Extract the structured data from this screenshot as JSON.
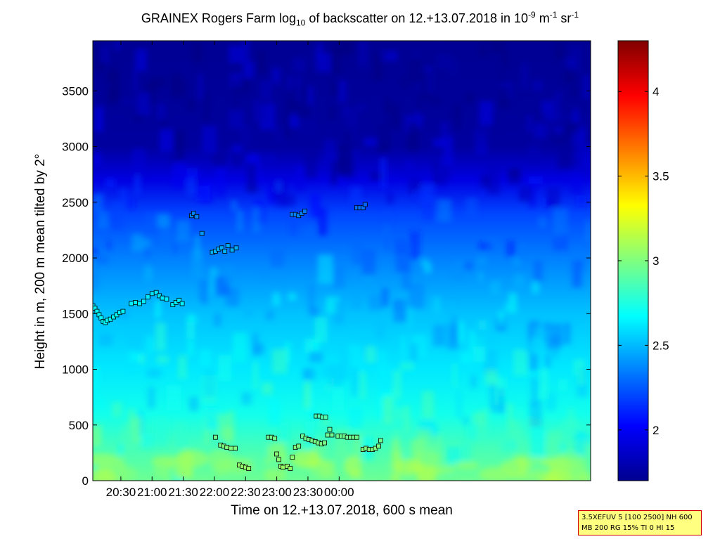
{
  "title": {
    "prefix": "GRAINEX Rogers Farm log",
    "sub": "10",
    "middle": " of backscatter on 12.+13.07.2018 in 10",
    "sup1": "-9",
    "unit1": " m",
    "sup2": "-1",
    "unit2": " sr",
    "sup3": "-1"
  },
  "note": {
    "line1": "3.5XEFUV 5 [100 2500] NH 600",
    "line2": "MB 200 RG 15% TI 0 HI 15"
  },
  "chart_data": {
    "type": "heatmap",
    "xlabel": "Time on 12.+13.07.2018, 600 s mean",
    "ylabel": "Height in m, 200 m mean tilted by 2°",
    "x_unit": "minutes after 20:00 on 12.07.2018",
    "xlim": [
      3,
      482
    ],
    "ylim": [
      0,
      3950
    ],
    "x_ticks": [
      {
        "value": 30,
        "label": "20:30"
      },
      {
        "value": 60,
        "label": "21:00"
      },
      {
        "value": 90,
        "label": "21:30"
      },
      {
        "value": 120,
        "label": "22:00"
      },
      {
        "value": 150,
        "label": "22:30"
      },
      {
        "value": 180,
        "label": "23:00"
      },
      {
        "value": 210,
        "label": "23:30"
      },
      {
        "value": 240,
        "label": "00:00"
      }
    ],
    "y_ticks": [
      0,
      500,
      1000,
      1500,
      2000,
      2500,
      3000,
      3500
    ],
    "colorbar": {
      "range": [
        1.7,
        4.3
      ],
      "ticks": [
        2,
        2.5,
        3,
        3.5,
        4
      ],
      "colormap": "jet"
    },
    "heatmap_profile": [
      {
        "height": 0,
        "value": 2.95
      },
      {
        "height": 300,
        "value": 2.85
      },
      {
        "height": 600,
        "value": 2.72
      },
      {
        "height": 1000,
        "value": 2.62
      },
      {
        "height": 1500,
        "value": 2.52
      },
      {
        "height": 2000,
        "value": 2.35
      },
      {
        "height": 2400,
        "value": 2.2
      },
      {
        "height": 2700,
        "value": 1.95
      },
      {
        "height": 3000,
        "value": 1.78
      },
      {
        "height": 3950,
        "value": 1.75
      }
    ],
    "markers": [
      {
        "time": 3,
        "height": 1570
      },
      {
        "time": 5,
        "height": 1550
      },
      {
        "time": 7,
        "height": 1520
      },
      {
        "time": 9,
        "height": 1490
      },
      {
        "time": 11,
        "height": 1460
      },
      {
        "time": 13,
        "height": 1430
      },
      {
        "time": 15,
        "height": 1420
      },
      {
        "time": 17,
        "height": 1440
      },
      {
        "time": 20,
        "height": 1450
      },
      {
        "time": 23,
        "height": 1470
      },
      {
        "time": 26,
        "height": 1490
      },
      {
        "time": 29,
        "height": 1510
      },
      {
        "time": 32,
        "height": 1520
      },
      {
        "time": 40,
        "height": 1590
      },
      {
        "time": 44,
        "height": 1600
      },
      {
        "time": 48,
        "height": 1590
      },
      {
        "time": 52,
        "height": 1610
      },
      {
        "time": 56,
        "height": 1650
      },
      {
        "time": 60,
        "height": 1680
      },
      {
        "time": 64,
        "height": 1690
      },
      {
        "time": 67,
        "height": 1660
      },
      {
        "time": 70,
        "height": 1640
      },
      {
        "time": 74,
        "height": 1630
      },
      {
        "time": 80,
        "height": 1580
      },
      {
        "time": 83,
        "height": 1600
      },
      {
        "time": 86,
        "height": 1620
      },
      {
        "time": 89,
        "height": 1590
      },
      {
        "time": 98,
        "height": 2380
      },
      {
        "time": 100,
        "height": 2400
      },
      {
        "time": 103,
        "height": 2370
      },
      {
        "time": 108,
        "height": 2220
      },
      {
        "time": 118,
        "height": 2050
      },
      {
        "time": 121,
        "height": 2060
      },
      {
        "time": 124,
        "height": 2080
      },
      {
        "time": 127,
        "height": 2090
      },
      {
        "time": 130,
        "height": 2060
      },
      {
        "time": 133,
        "height": 2110
      },
      {
        "time": 137,
        "height": 2070
      },
      {
        "time": 141,
        "height": 2090
      },
      {
        "time": 121,
        "height": 390
      },
      {
        "time": 126,
        "height": 320
      },
      {
        "time": 129,
        "height": 310
      },
      {
        "time": 132,
        "height": 300
      },
      {
        "time": 136,
        "height": 290
      },
      {
        "time": 140,
        "height": 290
      },
      {
        "time": 144,
        "height": 140
      },
      {
        "time": 147,
        "height": 130
      },
      {
        "time": 150,
        "height": 120
      },
      {
        "time": 153,
        "height": 110
      },
      {
        "time": 172,
        "height": 390
      },
      {
        "time": 175,
        "height": 390
      },
      {
        "time": 178,
        "height": 380
      },
      {
        "time": 180,
        "height": 240
      },
      {
        "time": 182,
        "height": 190
      },
      {
        "time": 184,
        "height": 130
      },
      {
        "time": 186,
        "height": 120
      },
      {
        "time": 190,
        "height": 130
      },
      {
        "time": 193,
        "height": 110
      },
      {
        "time": 195,
        "height": 210
      },
      {
        "time": 198,
        "height": 300
      },
      {
        "time": 201,
        "height": 310
      },
      {
        "time": 195,
        "height": 2390
      },
      {
        "time": 198,
        "height": 2390
      },
      {
        "time": 201,
        "height": 2380
      },
      {
        "time": 204,
        "height": 2400
      },
      {
        "time": 207,
        "height": 2420
      },
      {
        "time": 205,
        "height": 400
      },
      {
        "time": 208,
        "height": 380
      },
      {
        "time": 211,
        "height": 370
      },
      {
        "time": 214,
        "height": 360
      },
      {
        "time": 217,
        "height": 350
      },
      {
        "time": 220,
        "height": 340
      },
      {
        "time": 223,
        "height": 330
      },
      {
        "time": 226,
        "height": 340
      },
      {
        "time": 218,
        "height": 580
      },
      {
        "time": 221,
        "height": 580
      },
      {
        "time": 224,
        "height": 570
      },
      {
        "time": 227,
        "height": 570
      },
      {
        "time": 229,
        "height": 410
      },
      {
        "time": 231,
        "height": 460
      },
      {
        "time": 233,
        "height": 410
      },
      {
        "time": 239,
        "height": 400
      },
      {
        "time": 242,
        "height": 400
      },
      {
        "time": 245,
        "height": 400
      },
      {
        "time": 248,
        "height": 390
      },
      {
        "time": 251,
        "height": 390
      },
      {
        "time": 254,
        "height": 390
      },
      {
        "time": 257,
        "height": 390
      },
      {
        "time": 257,
        "height": 2450
      },
      {
        "time": 260,
        "height": 2450
      },
      {
        "time": 263,
        "height": 2450
      },
      {
        "time": 265,
        "height": 2480
      },
      {
        "time": 263,
        "height": 280
      },
      {
        "time": 266,
        "height": 290
      },
      {
        "time": 269,
        "height": 280
      },
      {
        "time": 272,
        "height": 280
      },
      {
        "time": 275,
        "height": 290
      },
      {
        "time": 278,
        "height": 310
      },
      {
        "time": 280,
        "height": 360
      }
    ]
  }
}
